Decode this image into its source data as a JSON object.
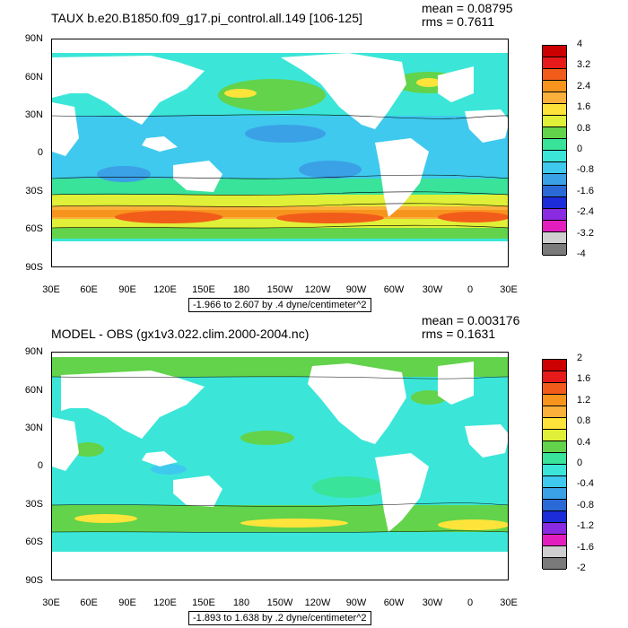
{
  "panels": [
    {
      "title": "TAUX b.e20.B1850.f09_g17.pi_control.all.149 [106-125]",
      "mean": "mean = 0.08795",
      "rms": "rms = 0.7611",
      "range": "-1.966 to 2.607 by .4 dyne/centimeter^2",
      "lat_labels": [
        "90N",
        "60N",
        "30N",
        "0",
        "30S",
        "60S",
        "90S"
      ],
      "lon_labels": [
        "30E",
        "60E",
        "90E",
        "120E",
        "150E",
        "180",
        "150W",
        "120W",
        "90W",
        "60W",
        "30W",
        "0",
        "30E"
      ],
      "colorbar_labels": [
        "4",
        "3.2",
        "2.4",
        "1.6",
        "0.8",
        "0",
        "-0.8",
        "-1.6",
        "-2.4",
        "-3.2",
        "-4"
      ],
      "colorbar_colors": [
        "#cc0000",
        "#e61a1a",
        "#f25c1a",
        "#f7941d",
        "#fbb03b",
        "#fee43a",
        "#e0ef37",
        "#62d34a",
        "#39e39a",
        "#3be6d8",
        "#3fc9ee",
        "#3ba1e6",
        "#2a6ad6",
        "#1c2cd8",
        "#8a2be2",
        "#e21fbe",
        "#cfcfcf",
        "#7a7a7a"
      ]
    },
    {
      "title": "MODEL - OBS (gx1v3.022.clim.2000-2004.nc)",
      "mean": "mean = 0.003176",
      "rms": "rms = 0.1631",
      "range": "-1.893 to 1.638 by .2 dyne/centimeter^2",
      "lat_labels": [
        "90N",
        "60N",
        "30N",
        "0",
        "30S",
        "60S",
        "90S"
      ],
      "lon_labels": [
        "30E",
        "60E",
        "90E",
        "120E",
        "150E",
        "180",
        "150W",
        "120W",
        "90W",
        "60W",
        "30W",
        "0",
        "30E"
      ],
      "colorbar_labels": [
        "2",
        "1.6",
        "1.2",
        "0.8",
        "0.4",
        "0",
        "-0.4",
        "-0.8",
        "-1.2",
        "-1.6",
        "-2"
      ],
      "colorbar_colors": [
        "#cc0000",
        "#e61a1a",
        "#f25c1a",
        "#f7941d",
        "#fbb03b",
        "#fee43a",
        "#e0ef37",
        "#62d34a",
        "#39e39a",
        "#3be6d8",
        "#3fc9ee",
        "#3ba1e6",
        "#2a6ad6",
        "#1c2cd8",
        "#8a2be2",
        "#e21fbe",
        "#cfcfcf",
        "#7a7a7a"
      ]
    }
  ]
}
